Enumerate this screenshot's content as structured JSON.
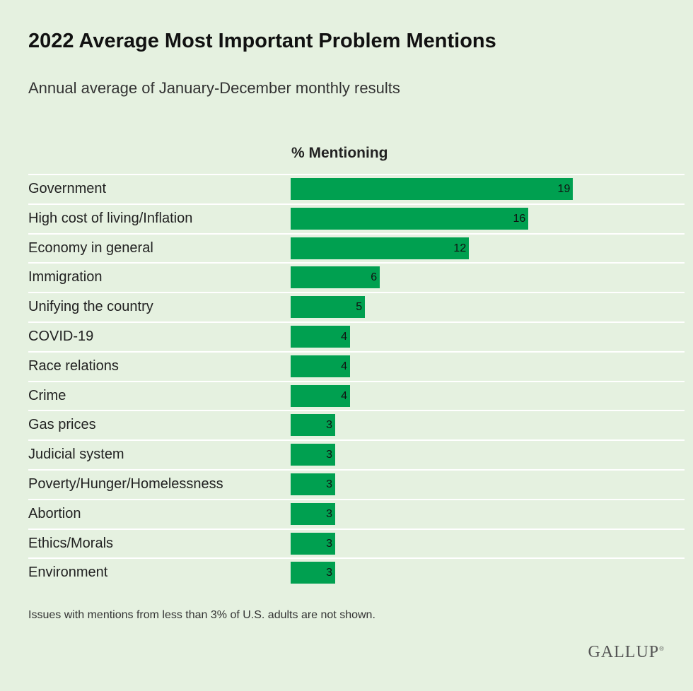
{
  "title": "2022 Average Most Important Problem Mentions",
  "subtitle": "Annual average of January-December monthly results",
  "column_header": "% Mentioning",
  "footnote": "Issues with mentions from less than 3% of U.S. adults are not shown.",
  "logo_text": "GALLUP",
  "colors": {
    "background": "#e5f1e0",
    "bar": "#00a050",
    "gridline": "#ffffff"
  },
  "chart_data": {
    "type": "bar",
    "orientation": "horizontal",
    "categories": [
      "Government",
      "High cost of living/Inflation",
      "Economy in general",
      "Immigration",
      "Unifying the country",
      "COVID-19",
      "Race relations",
      "Crime",
      "Gas prices",
      "Judicial system",
      "Poverty/Hunger/Homelessness",
      "Abortion",
      "Ethics/Morals",
      "Environment"
    ],
    "values": [
      19,
      16,
      12,
      6,
      5,
      4,
      4,
      4,
      3,
      3,
      3,
      3,
      3,
      3
    ],
    "title": "2022 Average Most Important Problem Mentions",
    "xlabel": "% Mentioning",
    "ylabel": "",
    "xlim": [
      0,
      26.5
    ],
    "data_labels": true,
    "grid": false,
    "legend": "none"
  }
}
